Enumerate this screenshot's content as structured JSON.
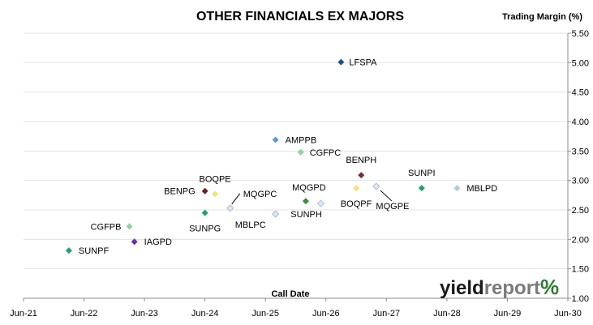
{
  "chart_data": {
    "type": "scatter",
    "title": "OTHER FINANCIALS EX MAJORS",
    "xlabel": "Call Date",
    "ylabel": "Trading Margin (%)",
    "x_ticks": [
      "Jun-21",
      "Jun-22",
      "Jun-23",
      "Jun-24",
      "Jun-25",
      "Jun-26",
      "Jun-27",
      "Jun-28",
      "Jun-29",
      "Jun-30"
    ],
    "xlim": [
      "2021-06",
      "2030-06"
    ],
    "y_ticks": [
      "1.00",
      "1.50",
      "2.00",
      "2.50",
      "3.00",
      "3.50",
      "4.00",
      "4.50",
      "5.00",
      "5.50"
    ],
    "ylim": [
      1.0,
      5.5
    ],
    "y_axis_position": "right",
    "grid": "horizontal",
    "legend": "none",
    "points": [
      {
        "label": "LFSPA",
        "x": "2026-09",
        "y": 5.01,
        "color": "#1f4e8c"
      },
      {
        "label": "AMPPB",
        "x": "2025-08",
        "y": 3.69,
        "color": "#5b9bd5"
      },
      {
        "label": "CGFPC",
        "x": "2026-01",
        "y": 3.48,
        "color": "#8fd19e"
      },
      {
        "label": "BENPH",
        "x": "2027-01",
        "y": 3.09,
        "color": "#7b2c2c"
      },
      {
        "label": "SUNPI",
        "x": "2028-01",
        "y": 2.87,
        "color": "#21a366"
      },
      {
        "label": "MBLPD",
        "x": "2028-08",
        "y": 2.87,
        "color": "#b4c7e7"
      },
      {
        "label": "MQGPE",
        "x": "2027-04",
        "y": 2.9,
        "color": "#dde6f5"
      },
      {
        "label": "BOQPF",
        "x": "2026-12",
        "y": 2.87,
        "color": "#f2e37a"
      },
      {
        "label": "MQGPD",
        "x": "2026-02",
        "y": 2.65,
        "color": "#3a8c3a"
      },
      {
        "label": "SUNPH",
        "x": "2026-05",
        "y": 2.61,
        "color": "#dde6f5"
      },
      {
        "label": "MBLPC",
        "x": "2025-08",
        "y": 2.43,
        "color": "#dde6f5"
      },
      {
        "label": "BENPG",
        "x": "2024-06",
        "y": 2.82,
        "color": "#6b2020"
      },
      {
        "label": "BOQPE",
        "x": "2024-08",
        "y": 2.77,
        "color": "#f2e37a"
      },
      {
        "label": "MQGPC",
        "x": "2024-11",
        "y": 2.53,
        "color": "#dde6f5"
      },
      {
        "label": "SUNPG",
        "x": "2024-06",
        "y": 2.45,
        "color": "#21a366"
      },
      {
        "label": "CGFPB",
        "x": "2023-03",
        "y": 2.22,
        "color": "#8fd19e"
      },
      {
        "label": "IAGPD",
        "x": "2023-04",
        "y": 1.96,
        "color": "#7030a0"
      },
      {
        "label": "SUNPF",
        "x": "2022-03",
        "y": 1.81,
        "color": "#21a366"
      }
    ]
  },
  "logo": {
    "part1": "yield",
    "part2": "report",
    "part3": "%"
  }
}
